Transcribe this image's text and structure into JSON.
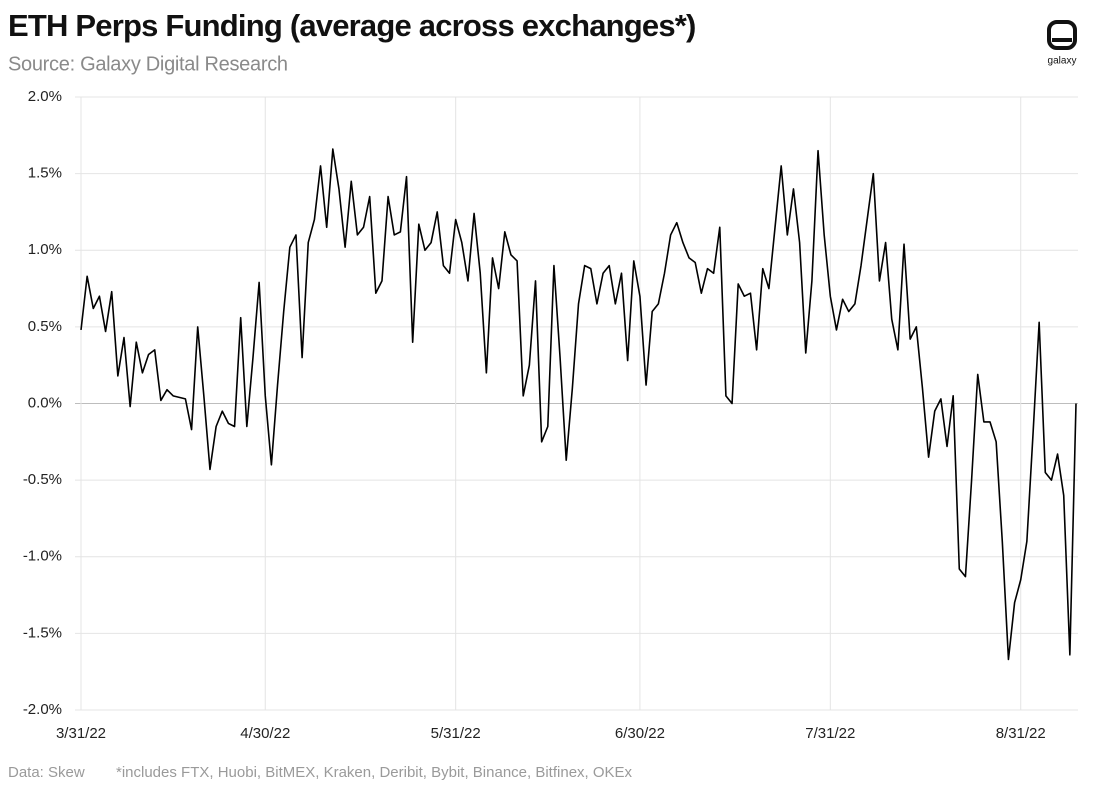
{
  "chart_data": {
    "type": "line",
    "title": "ETH Perps Funding (average across exchanges*)",
    "subtitle": "Source: Galaxy Digital Research",
    "logo_text": "galaxy",
    "footnotes": [
      "Data: Skew",
      "*includes FTX, Huobi, BitMEX, Kraken, Deribit, Bybit, Binance, Bitfinex, OKEx"
    ],
    "grid": true,
    "x": [
      "3/31/22",
      "4/1/22",
      "4/2/22",
      "4/3/22",
      "4/4/22",
      "4/5/22",
      "4/6/22",
      "4/7/22",
      "4/8/22",
      "4/9/22",
      "4/10/22",
      "4/11/22",
      "4/12/22",
      "4/13/22",
      "4/14/22",
      "4/15/22",
      "4/16/22",
      "4/17/22",
      "4/18/22",
      "4/19/22",
      "4/20/22",
      "4/21/22",
      "4/22/22",
      "4/23/22",
      "4/24/22",
      "4/25/22",
      "4/26/22",
      "4/27/22",
      "4/28/22",
      "4/29/22",
      "4/30/22",
      "5/1/22",
      "5/2/22",
      "5/3/22",
      "5/4/22",
      "5/5/22",
      "5/6/22",
      "5/7/22",
      "5/8/22",
      "5/9/22",
      "5/10/22",
      "5/11/22",
      "5/12/22",
      "5/13/22",
      "5/14/22",
      "5/15/22",
      "5/16/22",
      "5/17/22",
      "5/18/22",
      "5/19/22",
      "5/20/22",
      "5/21/22",
      "5/22/22",
      "5/23/22",
      "5/24/22",
      "5/25/22",
      "5/26/22",
      "5/27/22",
      "5/28/22",
      "5/29/22",
      "5/30/22",
      "5/31/22",
      "6/1/22",
      "6/2/22",
      "6/3/22",
      "6/4/22",
      "6/5/22",
      "6/6/22",
      "6/7/22",
      "6/8/22",
      "6/9/22",
      "6/10/22",
      "6/11/22",
      "6/12/22",
      "6/13/22",
      "6/14/22",
      "6/15/22",
      "6/16/22",
      "6/17/22",
      "6/18/22",
      "6/19/22",
      "6/20/22",
      "6/21/22",
      "6/22/22",
      "6/23/22",
      "6/24/22",
      "6/25/22",
      "6/26/22",
      "6/27/22",
      "6/28/22",
      "6/29/22",
      "6/30/22",
      "7/1/22",
      "7/2/22",
      "7/3/22",
      "7/4/22",
      "7/5/22",
      "7/6/22",
      "7/7/22",
      "7/8/22",
      "7/9/22",
      "7/10/22",
      "7/11/22",
      "7/12/22",
      "7/13/22",
      "7/14/22",
      "7/15/22",
      "7/16/22",
      "7/17/22",
      "7/18/22",
      "7/19/22",
      "7/20/22",
      "7/21/22",
      "7/22/22",
      "7/23/22",
      "7/24/22",
      "7/25/22",
      "7/26/22",
      "7/27/22",
      "7/28/22",
      "7/29/22",
      "7/30/22",
      "7/31/22",
      "8/1/22",
      "8/2/22",
      "8/3/22",
      "8/4/22",
      "8/5/22",
      "8/6/22",
      "8/7/22",
      "8/8/22",
      "8/9/22",
      "8/10/22",
      "8/11/22",
      "8/12/22",
      "8/13/22",
      "8/14/22",
      "8/15/22",
      "8/16/22",
      "8/17/22",
      "8/18/22",
      "8/19/22",
      "8/20/22",
      "8/21/22",
      "8/22/22",
      "8/23/22",
      "8/24/22",
      "8/25/22",
      "8/26/22",
      "8/27/22",
      "8/28/22",
      "8/29/22",
      "8/30/22",
      "8/31/22",
      "9/1/22",
      "9/2/22",
      "9/3/22",
      "9/4/22",
      "9/5/22",
      "9/6/22",
      "9/7/22",
      "9/8/22",
      "9/9/22"
    ],
    "series": [
      {
        "name": "ETH Perps Funding",
        "color": "#000000",
        "values": [
          0.48,
          0.83,
          0.62,
          0.7,
          0.47,
          0.73,
          0.18,
          0.43,
          -0.02,
          0.4,
          0.2,
          0.32,
          0.35,
          0.02,
          0.09,
          0.05,
          0.04,
          0.03,
          -0.17,
          0.5,
          0.05,
          -0.43,
          -0.15,
          -0.05,
          -0.13,
          -0.15,
          0.56,
          -0.15,
          0.3,
          0.79,
          0.05,
          -0.4,
          0.12,
          0.6,
          1.02,
          1.1,
          0.3,
          1.05,
          1.2,
          1.55,
          1.15,
          1.66,
          1.4,
          1.02,
          1.45,
          1.1,
          1.15,
          1.35,
          0.72,
          0.8,
          1.35,
          1.1,
          1.12,
          1.48,
          0.4,
          1.17,
          1.0,
          1.05,
          1.25,
          0.9,
          0.85,
          1.2,
          1.05,
          0.8,
          1.24,
          0.85,
          0.2,
          0.95,
          0.75,
          1.12,
          0.97,
          0.93,
          0.05,
          0.25,
          0.8,
          -0.25,
          -0.15,
          0.9,
          0.3,
          -0.37,
          0.1,
          0.65,
          0.9,
          0.88,
          0.65,
          0.85,
          0.9,
          0.65,
          0.85,
          0.28,
          0.93,
          0.7,
          0.12,
          0.6,
          0.65,
          0.85,
          1.1,
          1.18,
          1.05,
          0.95,
          0.92,
          0.72,
          0.88,
          0.85,
          1.15,
          0.05,
          0.0,
          0.78,
          0.7,
          0.72,
          0.35,
          0.88,
          0.75,
          1.15,
          1.55,
          1.1,
          1.4,
          1.05,
          0.33,
          0.8,
          1.65,
          1.1,
          0.7,
          0.48,
          0.68,
          0.6,
          0.65,
          0.9,
          1.2,
          1.5,
          0.8,
          1.05,
          0.55,
          0.35,
          1.04,
          0.42,
          0.5,
          0.1,
          -0.35,
          -0.05,
          0.03,
          -0.28,
          0.05,
          -1.08,
          -1.13,
          -0.5,
          0.19,
          -0.12,
          -0.12,
          -0.25,
          -0.9,
          -1.67,
          -1.3,
          -1.15,
          -0.9,
          -0.2,
          0.53,
          -0.45,
          -0.5,
          -0.33,
          -0.6,
          -1.64,
          0.0
        ]
      }
    ],
    "xlim": [
      "3/31/22",
      "9/9/22"
    ],
    "xticks": [
      "3/31/22",
      "4/30/22",
      "5/31/22",
      "6/30/22",
      "7/31/22",
      "8/31/22"
    ],
    "ylim": [
      -2,
      2
    ],
    "yticks": [
      {
        "value": -2,
        "label": "-2.0%"
      },
      {
        "value": -1.5,
        "label": "-1.5%"
      },
      {
        "value": -1,
        "label": "-1.0%"
      },
      {
        "value": -0.5,
        "label": "-0.5%"
      },
      {
        "value": 0,
        "label": "0.0%"
      },
      {
        "value": 0.5,
        "label": "0.5%"
      },
      {
        "value": 1,
        "label": "1.0%"
      },
      {
        "value": 1.5,
        "label": "1.5%"
      },
      {
        "value": 2,
        "label": "2.0%"
      }
    ]
  }
}
